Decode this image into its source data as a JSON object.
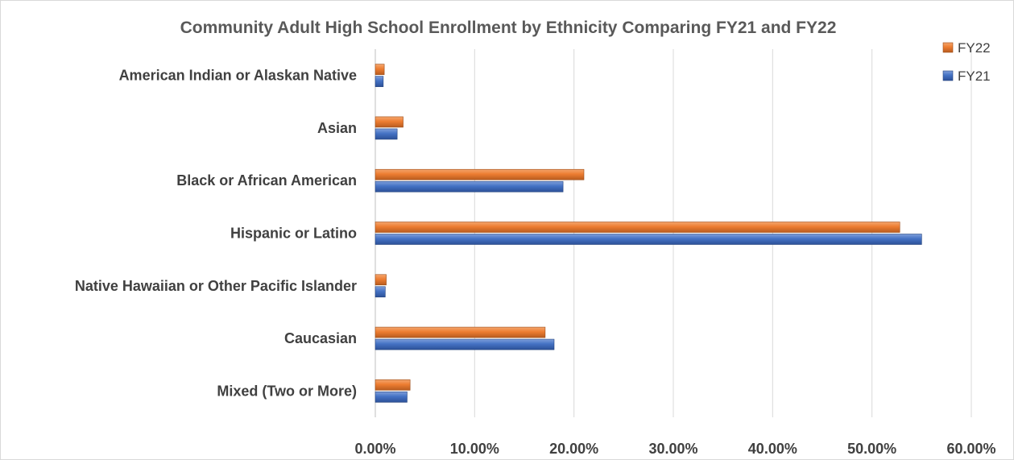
{
  "chart_data": {
    "type": "bar",
    "orientation": "horizontal",
    "title": "Community Adult High School Enrollment by Ethnicity Comparing FY21 and FY22",
    "categories": [
      "American Indian or Alaskan Native",
      "Asian",
      "Black or African American",
      "Hispanic or Latino",
      "Native Hawaiian or Other Pacific Islander",
      "Caucasian",
      "Mixed (Two or More)"
    ],
    "series": [
      {
        "name": "FY22",
        "color": "#ed7d31",
        "values": [
          0.9,
          2.8,
          21.0,
          52.8,
          1.1,
          17.1,
          3.5
        ]
      },
      {
        "name": "FY21",
        "color": "#4472c4",
        "values": [
          0.8,
          2.2,
          18.9,
          55.0,
          1.0,
          18.0,
          3.2
        ]
      }
    ],
    "xlim": [
      0,
      60
    ],
    "x_ticks": [
      "0.00%",
      "10.00%",
      "20.00%",
      "30.00%",
      "40.00%",
      "50.00%",
      "60.00%"
    ],
    "xlabel": "",
    "ylabel": "",
    "grid": true,
    "legend_position": "top-right"
  }
}
